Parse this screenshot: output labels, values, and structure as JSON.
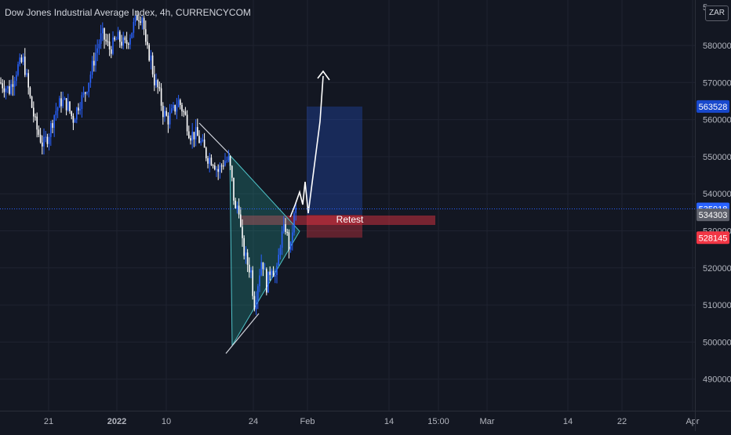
{
  "header": {
    "title": "Dow Jones Industrial Average Index, 4h, CURRENCYCOM",
    "currency_button": "ZAR"
  },
  "chart_data": {
    "type": "candlestick",
    "ylim": [
      481000,
      593000
    ],
    "y_ticks": [
      490000,
      500000,
      510000,
      520000,
      530000,
      540000,
      550000,
      560000,
      570000,
      580000
    ],
    "y_tick_labels": [
      "490000",
      "500000",
      "510000",
      "520000",
      "530000",
      "540000",
      "550000",
      "560000",
      "570000",
      "580000"
    ],
    "top_partial_tick": "5",
    "x_tick_labels": [
      "21",
      "2022",
      "10",
      "24",
      "Feb",
      "14",
      "15:00",
      "Mar",
      "14",
      "22",
      "Apr"
    ],
    "price_tags": [
      {
        "value": 563528,
        "label": "563528",
        "color": "#1848cc"
      },
      {
        "value": 535918,
        "label": "535918",
        "color": "#2962ff"
      },
      {
        "value": 534303,
        "label": "534303",
        "color": "#5d606b"
      },
      {
        "value": 528145,
        "label": "528145",
        "color": "#f23645"
      }
    ],
    "current_price": 535918,
    "annotation_label": "Retest",
    "close_path": [
      [
        0,
        570000
      ],
      [
        12,
        568000
      ],
      [
        22,
        574000
      ],
      [
        30,
        576000
      ],
      [
        38,
        566000
      ],
      [
        46,
        558000
      ],
      [
        55,
        553000
      ],
      [
        62,
        556000
      ],
      [
        70,
        562000
      ],
      [
        78,
        565000
      ],
      [
        86,
        564000
      ],
      [
        93,
        560000
      ],
      [
        100,
        564000
      ],
      [
        108,
        567000
      ],
      [
        115,
        572000
      ],
      [
        122,
        578000
      ],
      [
        130,
        583000
      ],
      [
        140,
        579000
      ],
      [
        150,
        582000
      ],
      [
        160,
        580000
      ],
      [
        168,
        584000
      ],
      [
        175,
        588000
      ],
      [
        182,
        588000
      ],
      [
        186,
        579000
      ],
      [
        192,
        577000
      ],
      [
        196,
        571000
      ],
      [
        202,
        568000
      ],
      [
        208,
        562000
      ],
      [
        214,
        560000
      ],
      [
        220,
        562000
      ],
      [
        228,
        565000
      ],
      [
        236,
        561000
      ],
      [
        242,
        556000
      ],
      [
        250,
        556000
      ],
      [
        258,
        553000
      ],
      [
        264,
        550000
      ],
      [
        272,
        549000
      ],
      [
        278,
        546000
      ],
      [
        286,
        549000
      ],
      [
        292,
        549000
      ],
      [
        296,
        543000
      ],
      [
        300,
        535000
      ],
      [
        304,
        538000
      ],
      [
        308,
        527000
      ],
      [
        314,
        522000
      ],
      [
        320,
        519000
      ],
      [
        324,
        510000
      ],
      [
        328,
        515000
      ],
      [
        334,
        523000
      ],
      [
        340,
        515000
      ],
      [
        346,
        521000
      ],
      [
        352,
        517000
      ],
      [
        358,
        528000
      ],
      [
        364,
        531000
      ],
      [
        370,
        524000
      ],
      [
        374,
        533000
      ],
      [
        378,
        536000
      ]
    ]
  }
}
